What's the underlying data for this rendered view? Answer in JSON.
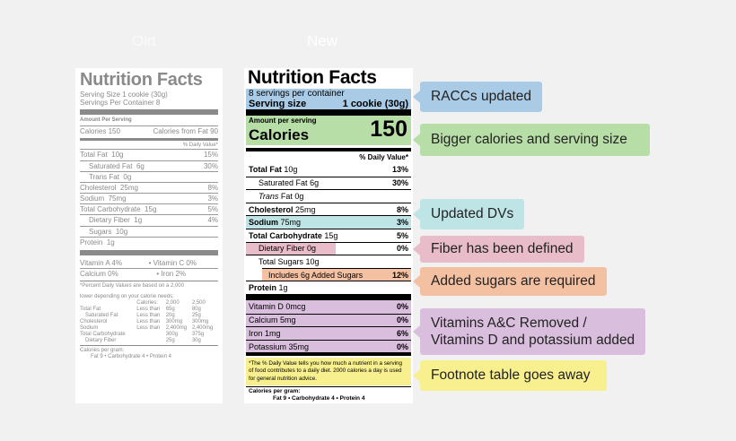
{
  "headings": {
    "old": "Old",
    "new": "New"
  },
  "old_label": {
    "title": "Nutrition Facts",
    "serving_size": "Serving Size 1 cookie (30g)",
    "servings_per": "Servings Per Container 8",
    "amount_per": "Amount Per Serving",
    "calories": "Calories",
    "calories_val": "150",
    "cal_from_fat": "Calories from Fat 90",
    "dv_head": "% Daily Value*",
    "rows": [
      {
        "label": "Total Fat",
        "amount": "10g",
        "dv": "15%",
        "indent": 0
      },
      {
        "label": "Saturated Fat",
        "amount": "6g",
        "dv": "30%",
        "indent": 1
      },
      {
        "label": "Trans Fat",
        "amount": "0g",
        "dv": "",
        "indent": 1
      },
      {
        "label": "Cholesterol",
        "amount": "25mg",
        "dv": "8%",
        "indent": 0
      },
      {
        "label": "Sodium",
        "amount": "75mg",
        "dv": "3%",
        "indent": 0
      },
      {
        "label": "Total Carbohydrate",
        "amount": "15g",
        "dv": "5%",
        "indent": 0
      },
      {
        "label": "Dietary Fiber",
        "amount": "1g",
        "dv": "4%",
        "indent": 1
      },
      {
        "label": "Sugars",
        "amount": "10g",
        "dv": "",
        "indent": 1
      },
      {
        "label": "Protein",
        "amount": "1g",
        "dv": "",
        "indent": 0
      }
    ],
    "vit_a": "Vitamin A 4%",
    "vit_c": "• Vitamin C 0%",
    "calcium": "Calcium 0%",
    "iron": "• Iron 2%",
    "footnote1": "*Percent Daily Values are based on a 2,000",
    "footnote2": "lower depending on your calorie needs:",
    "table_head": [
      "",
      "Calories:",
      "2,000",
      "2,500"
    ],
    "table_rows": [
      [
        "Total Fat",
        "Less than",
        "65g",
        "80g"
      ],
      [
        "Saturated Fat",
        "Less than",
        "20g",
        "25g"
      ],
      [
        "Cholesterol",
        "Less than",
        "300mg",
        "300mg"
      ],
      [
        "Sodium",
        "Less than",
        "2,400mg",
        "2,400mg"
      ],
      [
        "Total Carbohydrate",
        "",
        "300g",
        "375g"
      ],
      [
        "Dietary Fiber",
        "",
        "25g",
        "30g"
      ]
    ],
    "cal_per_gram": "Calories per gram:",
    "cal_per_gram_vals": "Fat 9  •  Carbohydrate 4  •  Protein 4"
  },
  "new_label": {
    "title": "Nutrition Facts",
    "servings_per": "8 servings per container",
    "serving_size_label": "Serving size",
    "serving_size_val": "1 cookie (30g)",
    "amount_per": "Amount per serving",
    "calories": "Calories",
    "calories_val": "150",
    "dv_head": "% Daily Value*",
    "rows": [
      {
        "label": "Total Fat",
        "amount": "10g",
        "dv": "13%"
      },
      {
        "label": "Saturated Fat",
        "amount": "6g",
        "dv": "30%"
      },
      {
        "label": "Trans",
        "amount": "Fat 0g",
        "dv": ""
      },
      {
        "label": "Cholesterol",
        "amount": "25mg",
        "dv": "8%"
      },
      {
        "label": "Sodium",
        "amount": "75mg",
        "dv": "3%"
      },
      {
        "label": "Total Carbohydrate",
        "amount": "15g",
        "dv": "5%"
      },
      {
        "label": "Dietary Fiber",
        "amount": "0g",
        "dv": "0%"
      },
      {
        "label": "Total Sugars",
        "amount": "10g",
        "dv": ""
      },
      {
        "label": "Includes 6g Added Sugars",
        "amount": "",
        "dv": "12%"
      },
      {
        "label": "Protein",
        "amount": "1g",
        "dv": ""
      }
    ],
    "vitamins": [
      {
        "label": "Vitamin D 0mcg",
        "dv": "0%"
      },
      {
        "label": "Calcium 5mg",
        "dv": "0%"
      },
      {
        "label": "Iron 1mg",
        "dv": "6%"
      },
      {
        "label": "Potassium 35mg",
        "dv": "0%"
      }
    ],
    "footnote": "*The % Daily Value tells you how much a nutrient in a serving of food contributes to a daily diet. 2000 calories a day is used for general nutrition advice.",
    "cal_per_gram": "Calories per gram:",
    "cal_per_gram_vals": "Fat 9  •  Carbohydrate 4  •  Protein 4"
  },
  "callouts": [
    {
      "text": "RACCs updated",
      "color": "#a9cbe6"
    },
    {
      "text": "Bigger calories and serving size",
      "color": "#b8dea7"
    },
    {
      "text": "Updated DVs",
      "color": "#bfe4e6"
    },
    {
      "text": "Fiber has been defined",
      "color": "#e8bcc8"
    },
    {
      "text": "Added sugars are required",
      "color": "#f4c0a2"
    },
    {
      "text": "Vitamins A&C Removed /",
      "text2": "Vitamins D and potassium added",
      "color": "#d9bfdd"
    },
    {
      "text": "Footnote table goes away",
      "color": "#f8ef8f"
    }
  ]
}
